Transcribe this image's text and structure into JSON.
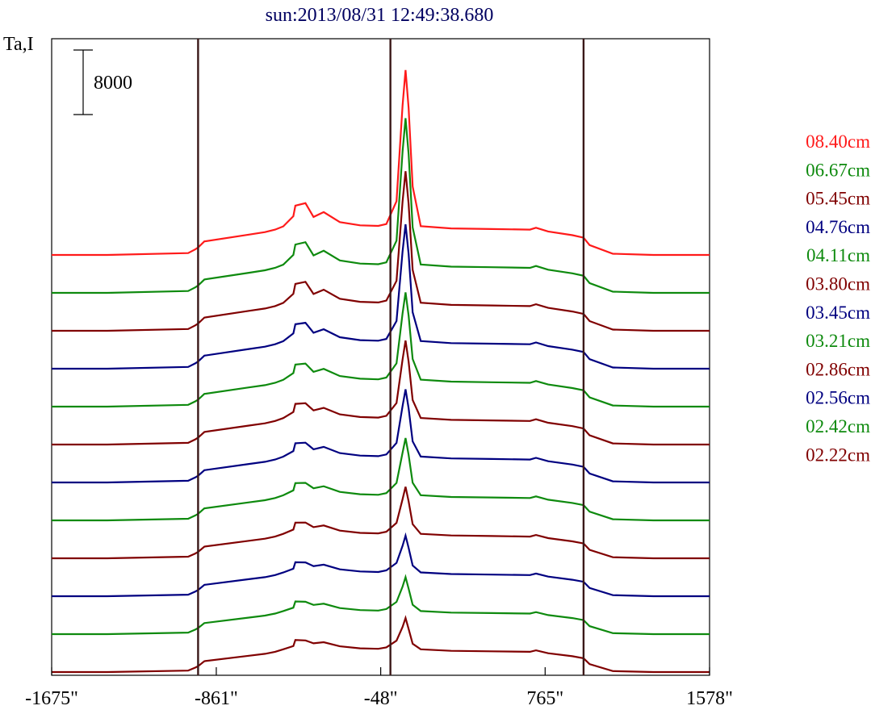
{
  "chart_data": {
    "type": "line",
    "title": "sun:2013/08/31 12:49:38.680",
    "ylabel": "Ta,I",
    "scale_bar_label": "8000",
    "scale_bar_value": 8000,
    "xlabel": "",
    "xlim": [
      -1675,
      1578
    ],
    "x_ticks": [
      -1675,
      -861,
      -48,
      765,
      1578
    ],
    "x_tick_labels": [
      "-1675\"",
      "-861\"",
      "-48\"",
      "765\"",
      "1578\""
    ],
    "vertical_markers": [
      -951,
      0,
      955
    ],
    "grid": false,
    "legend_position": "right",
    "x_profile": [
      -1675,
      -1400,
      -1000,
      -965,
      -951,
      -920,
      -700,
      -620,
      -570,
      -530,
      -480,
      -470,
      -420,
      -380,
      -330,
      -250,
      -150,
      -60,
      -20,
      30,
      60,
      75,
      90,
      110,
      150,
      300,
      500,
      690,
      720,
      780,
      900,
      955,
      985,
      1100,
      1300,
      1578
    ],
    "series": [
      {
        "name": "08.40cm",
        "color": "#ff1a1a",
        "offset": 0,
        "amp": 8.5,
        "peak": 28,
        "core": 10
      },
      {
        "name": "06.67cm",
        "color": "#0e8a0e",
        "offset": 1,
        "amp": 8.4,
        "peak": 26,
        "core": 9.5
      },
      {
        "name": "05.45cm",
        "color": "#800000",
        "offset": 2,
        "amp": 8.3,
        "peak": 23,
        "core": 8.5
      },
      {
        "name": "04.76cm",
        "color": "#000080",
        "offset": 3,
        "amp": 8.2,
        "peak": 20,
        "core": 6.5
      },
      {
        "name": "04.11cm",
        "color": "#0e8a0e",
        "offset": 4,
        "amp": 8.0,
        "peak": 14,
        "core": 5
      },
      {
        "name": "03.80cm",
        "color": "#800000",
        "offset": 5,
        "amp": 7.9,
        "peak": 12,
        "core": 4
      },
      {
        "name": "03.45cm",
        "color": "#000080",
        "offset": 6,
        "amp": 7.7,
        "peak": 10,
        "core": 3.5
      },
      {
        "name": "03.21cm",
        "color": "#0e8a0e",
        "offset": 7,
        "amp": 7.5,
        "peak": 8,
        "core": 2.5
      },
      {
        "name": "02.86cm",
        "color": "#800000",
        "offset": 8,
        "amp": 7.3,
        "peak": 6,
        "core": 1.8
      },
      {
        "name": "02.56cm",
        "color": "#000080",
        "offset": 9,
        "amp": 7.1,
        "peak": 4,
        "core": 1
      },
      {
        "name": "02.42cm",
        "color": "#0e8a0e",
        "offset": 10,
        "amp": 6.9,
        "peak": 3.5,
        "core": 0.6
      },
      {
        "name": "02.22cm",
        "color": "#800000",
        "offset": 11,
        "amp": 6.8,
        "peak": 3,
        "core": 0.4
      }
    ],
    "profile_shape": [
      0,
      0,
      0.3,
      0.9,
      1.2,
      2.2,
      3.3,
      3.7,
      4.1,
      4.6,
      5.2,
      6.4,
      6.3,
      5.8,
      6.0,
      5.2,
      4.8,
      4.7,
      5.0,
      6.0,
      6.8,
      8.0,
      6.4,
      4.9,
      4.6,
      4.3,
      4.2,
      4.1,
      4.4,
      3.8,
      3.2,
      2.8,
      1.6,
      0.2,
      0,
      0
    ]
  }
}
